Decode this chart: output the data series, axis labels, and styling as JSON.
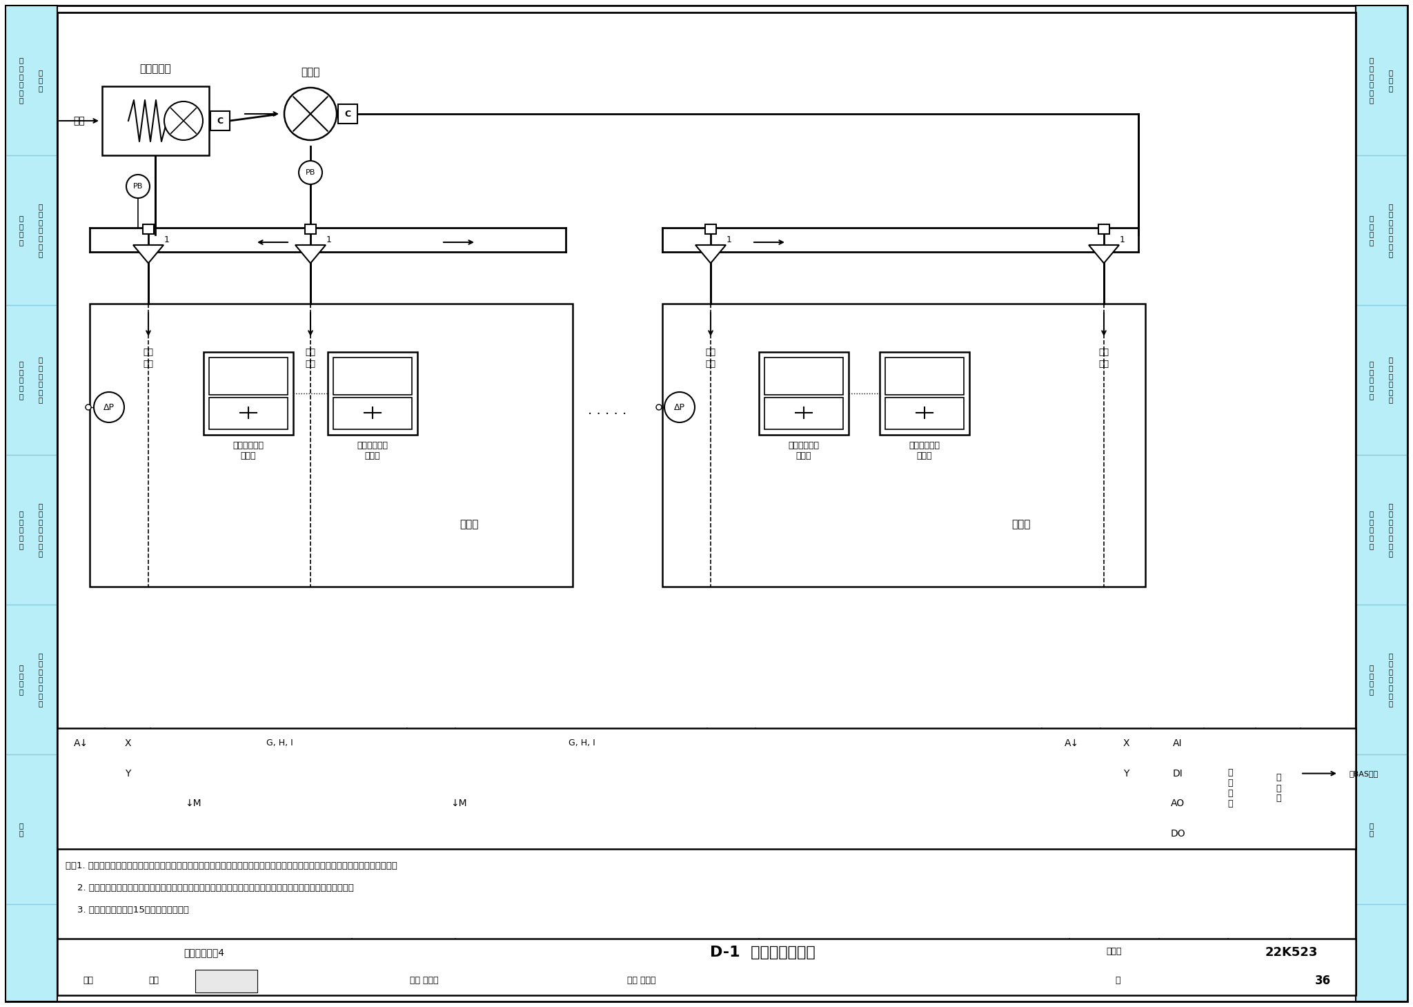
{
  "bg_color": "#FFFFFF",
  "sidebar_color": "#B8EEF8",
  "title": "D-1  系统控制原理图",
  "subtitle": "典型通风系统4",
  "figure_number": "22K523",
  "page": "36",
  "notes": [
    "注：1. 本图不包含新风空调箱空气过滤与热湿处理装置、无风管自净型排风柜自身的监视与控制，上述设备相关控制由工艺专业确定。",
    "    2. 本图定风量控制阀监控点类型仅供示意，具体监控类型及监控信号应根据实际工程项目的工艺专业有所增减。",
    "    3. 控制点代号详见第15页控制点代号表。"
  ],
  "sidebar_sections": [
    {
      "label1": "通\n风\n系\n统\n设\n计",
      "label2": "实\n验\n室"
    },
    {
      "label1": "设\n计\n案\n例",
      "label2": "实\n验\n室\n通\n风\n系\n统"
    },
    {
      "label1": "选\n用\n与\n安\n装",
      "label2": "局\n部\n排\n风\n设\n备"
    },
    {
      "label1": "选\n用\n与\n安\n装",
      "label2": "风\n阀\n与\n其\n他\n设\n备"
    },
    {
      "label1": "管\n理\n维\n护",
      "label2": "实\n验\n室\n运\n行\n维\n护"
    },
    {
      "label1": "附\n录",
      "label2": ""
    }
  ]
}
